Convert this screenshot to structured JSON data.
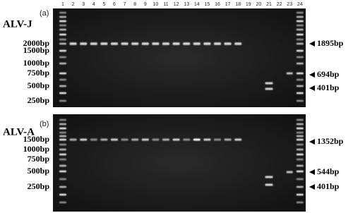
{
  "lanes": [
    "1",
    "2",
    "3",
    "4",
    "5",
    "6",
    "7",
    "8",
    "9",
    "10",
    "11",
    "12",
    "13",
    "14",
    "15",
    "16",
    "17",
    "18",
    "19",
    "20",
    "21",
    "22",
    "23",
    "24"
  ],
  "panels": [
    {
      "name": "ALV-J",
      "tag": "(a)",
      "left_markers": [
        "2000bp",
        "1500bp",
        "1000bp",
        "750bp",
        "500bp",
        "250bp"
      ],
      "right_markers": [
        "1895bp",
        "694bp",
        "401bp"
      ]
    },
    {
      "name": "ALV-A",
      "tag": "(b)",
      "left_markers": [
        "1500bp",
        "1000bp",
        "750bp",
        "500bp",
        "250bp"
      ],
      "right_markers": [
        "1352bp",
        "544bp",
        "401bp"
      ]
    }
  ]
}
